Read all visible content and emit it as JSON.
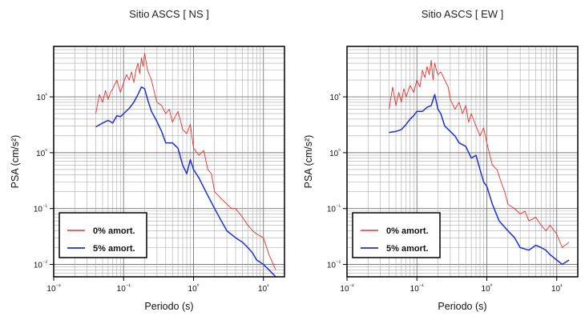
{
  "chart_data": [
    {
      "type": "line",
      "title": "Sitio ASCS [ NS ]",
      "xlabel": "Periodo (s)",
      "ylabel": "PSA (cm/s²)",
      "x_scale": "log",
      "y_scale": "log",
      "xlim": [
        0.01,
        20
      ],
      "ylim": [
        0.006,
        80
      ],
      "x_ticks": [
        "10⁻²",
        "10⁻¹",
        "10⁰",
        "10¹"
      ],
      "y_ticks": [
        "10⁻²",
        "10⁻¹",
        "10⁰",
        "10¹"
      ],
      "grid": true,
      "legend_position": "bottom-left",
      "series": [
        {
          "name": "0% amort.",
          "color": "#e8302a",
          "x": [
            0.04,
            0.045,
            0.05,
            0.055,
            0.06,
            0.065,
            0.07,
            0.08,
            0.09,
            0.1,
            0.11,
            0.12,
            0.13,
            0.14,
            0.15,
            0.16,
            0.17,
            0.18,
            0.19,
            0.2,
            0.22,
            0.25,
            0.28,
            0.3,
            0.35,
            0.4,
            0.45,
            0.5,
            0.55,
            0.6,
            0.7,
            0.8,
            0.9,
            1.0,
            1.2,
            1.4,
            1.6,
            1.8,
            2.0,
            2.5,
            3.0,
            3.5,
            4.0,
            5.0,
            6.0,
            7.0,
            8.0,
            10.0,
            12.0,
            15.0
          ],
          "values": [
            5,
            11,
            8,
            13,
            9,
            12,
            14,
            20,
            12,
            18,
            25,
            20,
            28,
            18,
            30,
            40,
            26,
            50,
            35,
            60,
            30,
            20,
            11,
            8,
            7,
            5,
            6,
            3.5,
            4.5,
            5.5,
            2.6,
            2.2,
            3.2,
            1.2,
            0.9,
            1.1,
            0.5,
            0.42,
            0.2,
            0.15,
            0.12,
            0.1,
            0.1,
            0.07,
            0.05,
            0.04,
            0.035,
            0.03,
            0.015,
            0.008
          ]
        },
        {
          "name": "5% amort.",
          "color": "#1f2fd6",
          "x": [
            0.04,
            0.05,
            0.06,
            0.07,
            0.08,
            0.09,
            0.1,
            0.12,
            0.14,
            0.16,
            0.18,
            0.2,
            0.22,
            0.25,
            0.3,
            0.35,
            0.4,
            0.5,
            0.6,
            0.7,
            0.8,
            0.9,
            1.0,
            1.2,
            1.5,
            2.0,
            2.5,
            3.0,
            4.0,
            5.0,
            6.0,
            7.0,
            8.0,
            10.0,
            12.0,
            15.0
          ],
          "values": [
            2.9,
            3.4,
            3.8,
            3.4,
            4.6,
            4.4,
            5.0,
            6.2,
            8.0,
            11.0,
            15.0,
            14.0,
            9.0,
            5.5,
            3.6,
            2.4,
            1.5,
            1.5,
            1.2,
            0.6,
            0.42,
            0.75,
            0.5,
            0.35,
            0.2,
            0.1,
            0.06,
            0.04,
            0.03,
            0.025,
            0.02,
            0.016,
            0.012,
            0.01,
            0.008,
            0.006
          ]
        }
      ]
    },
    {
      "type": "line",
      "title": "Sitio ASCS [ EW ]",
      "xlabel": "Periodo (s)",
      "ylabel": "PSA (cm/s²)",
      "x_scale": "log",
      "y_scale": "log",
      "xlim": [
        0.01,
        20
      ],
      "ylim": [
        0.006,
        80
      ],
      "x_ticks": [
        "10⁻²",
        "10⁻¹",
        "10⁰",
        "10¹"
      ],
      "y_ticks": [
        "10⁻²",
        "10⁻¹",
        "10⁰",
        "10¹"
      ],
      "grid": true,
      "legend_position": "bottom-left",
      "series": [
        {
          "name": "0% amort.",
          "color": "#e8302a",
          "x": [
            0.04,
            0.045,
            0.05,
            0.055,
            0.06,
            0.065,
            0.07,
            0.08,
            0.09,
            0.1,
            0.11,
            0.12,
            0.13,
            0.14,
            0.15,
            0.16,
            0.17,
            0.18,
            0.19,
            0.2,
            0.22,
            0.25,
            0.28,
            0.3,
            0.35,
            0.4,
            0.45,
            0.5,
            0.55,
            0.6,
            0.7,
            0.8,
            0.9,
            1.0,
            1.2,
            1.4,
            1.6,
            1.8,
            2.0,
            2.5,
            3.0,
            3.5,
            4.0,
            5.0,
            6.0,
            7.0,
            8.0,
            10.0,
            12.0,
            15.0
          ],
          "values": [
            6,
            15,
            7,
            12,
            8,
            14,
            10,
            16,
            12,
            20,
            15,
            30,
            22,
            35,
            25,
            45,
            20,
            40,
            30,
            25,
            28,
            20,
            15,
            9,
            6,
            8,
            5,
            7,
            3.5,
            5,
            3,
            2,
            2.8,
            1.5,
            0.6,
            0.5,
            0.3,
            0.2,
            0.12,
            0.1,
            0.08,
            0.09,
            0.06,
            0.07,
            0.05,
            0.04,
            0.05,
            0.035,
            0.02,
            0.025
          ]
        },
        {
          "name": "5% amort.",
          "color": "#1f2fd6",
          "x": [
            0.04,
            0.05,
            0.06,
            0.07,
            0.08,
            0.09,
            0.1,
            0.12,
            0.14,
            0.16,
            0.18,
            0.2,
            0.22,
            0.25,
            0.3,
            0.35,
            0.4,
            0.5,
            0.6,
            0.7,
            0.8,
            0.9,
            1.0,
            1.2,
            1.5,
            2.0,
            2.5,
            3.0,
            4.0,
            5.0,
            6.0,
            7.0,
            8.0,
            10.0,
            12.0,
            15.0
          ],
          "values": [
            2.3,
            2.4,
            2.6,
            3.2,
            4.0,
            4.6,
            5.5,
            5.5,
            6.5,
            7.0,
            11.0,
            6.0,
            5.0,
            3.0,
            2.4,
            2.0,
            1.5,
            1.3,
            0.8,
            0.9,
            0.5,
            0.3,
            0.25,
            0.12,
            0.06,
            0.04,
            0.03,
            0.02,
            0.018,
            0.022,
            0.02,
            0.018,
            0.015,
            0.012,
            0.01,
            0.012
          ]
        }
      ]
    }
  ]
}
